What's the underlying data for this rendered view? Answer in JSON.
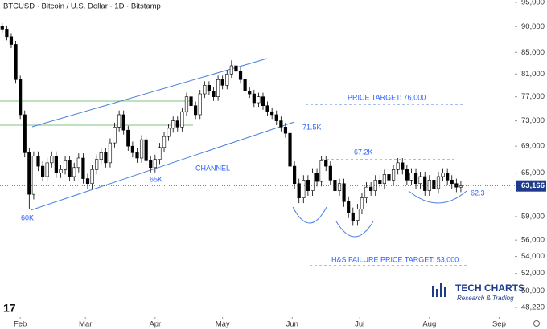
{
  "chart_data": {
    "type": "candlestick",
    "title": "BTCUSD · Bitcoin / U.S. Dollar · 1D · Bitstamp",
    "log": true,
    "x": [
      24,
      26,
      28,
      30,
      32,
      34,
      36,
      38,
      40,
      42,
      44,
      46,
      48,
      50,
      52,
      54,
      56,
      58,
      60,
      62,
      64,
      66,
      68,
      70,
      72,
      74,
      76,
      78,
      80,
      82,
      84,
      86,
      88,
      90,
      92,
      94,
      96,
      98,
      100,
      102,
      104,
      106,
      108,
      110,
      112,
      114,
      116,
      118,
      120,
      122,
      124,
      126,
      128,
      130,
      132,
      134,
      136,
      138,
      140,
      142,
      144,
      146,
      148,
      150,
      152,
      154,
      156,
      158,
      160,
      162,
      164,
      166,
      168,
      170,
      172,
      174,
      176,
      178,
      180,
      182,
      184,
      186,
      188,
      190,
      192,
      194,
      196,
      198,
      200,
      202,
      204,
      206,
      208,
      210,
      212,
      214,
      216,
      218,
      220,
      222,
      224,
      226,
      228
    ],
    "open": [
      90000,
      89500,
      88000,
      86500,
      80000,
      74000,
      68000,
      62000,
      67500,
      66000,
      64500,
      66500,
      67500,
      65000,
      65500,
      66800,
      64500,
      65800,
      67200,
      64200,
      63500,
      65500,
      67000,
      68000,
      66500,
      69500,
      72000,
      74000,
      71500,
      69000,
      68000,
      67200,
      70000,
      66800,
      65800,
      67000,
      68800,
      70500,
      71800,
      73000,
      72000,
      74500,
      77000,
      75500,
      74000,
      77500,
      79000,
      78000,
      77000,
      80000,
      79000,
      81000,
      82500,
      81500,
      80000,
      78000,
      77500,
      76000,
      77000,
      75500,
      74500,
      74000,
      73000,
      72000,
      71000,
      66000,
      63500,
      61500,
      64000,
      62500,
      65000,
      63800,
      66800,
      66000,
      64000,
      62500,
      63500,
      61000,
      59500,
      58500,
      60000,
      61500,
      63000,
      62500,
      64000,
      63500,
      64800,
      64000,
      65500,
      66500,
      65500,
      64000,
      65000,
      63500,
      64500,
      62500,
      64000,
      62800,
      64500,
      65000,
      64000,
      63500,
      63000
    ],
    "high": [
      90700,
      90200,
      88700,
      87200,
      80700,
      74700,
      68700,
      68200,
      68200,
      66700,
      67200,
      68200,
      68200,
      66200,
      67500,
      67500,
      66500,
      67900,
      67900,
      64900,
      66200,
      67700,
      68700,
      68700,
      70200,
      72700,
      74700,
      74700,
      72200,
      69700,
      68700,
      70700,
      70700,
      67500,
      67700,
      69500,
      71200,
      72500,
      73700,
      73700,
      75200,
      77700,
      77700,
      76200,
      78200,
      79700,
      79700,
      78700,
      80700,
      80700,
      81700,
      83500,
      83200,
      82200,
      80700,
      78700,
      78200,
      77700,
      77700,
      76200,
      75200,
      74700,
      73700,
      72700,
      71700,
      66700,
      64200,
      64700,
      64700,
      65700,
      65700,
      67500,
      67500,
      66700,
      64700,
      64200,
      64200,
      61700,
      60200,
      60700,
      62200,
      63700,
      63700,
      64700,
      64700,
      65500,
      65500,
      66200,
      67200,
      67200,
      66200,
      65700,
      65700,
      65200,
      65200,
      64700,
      64700,
      65200,
      65700,
      65700,
      64700,
      64200,
      63866
    ],
    "low": [
      88800,
      87300,
      85800,
      79300,
      73300,
      67300,
      60000,
      61300,
      65300,
      63800,
      63800,
      65800,
      64300,
      64300,
      64800,
      63800,
      63800,
      65100,
      63500,
      62800,
      62800,
      64800,
      66300,
      65800,
      65800,
      68800,
      71300,
      70800,
      68300,
      67300,
      66500,
      66500,
      66100,
      65100,
      65100,
      66300,
      68100,
      69800,
      71100,
      71300,
      71300,
      73800,
      74800,
      73300,
      73300,
      76800,
      77300,
      76300,
      76300,
      78300,
      78300,
      80300,
      80800,
      79300,
      77300,
      76800,
      75300,
      75300,
      74800,
      73800,
      73300,
      72300,
      71300,
      70300,
      65300,
      62800,
      60800,
      60800,
      61800,
      61800,
      63100,
      63100,
      65300,
      63300,
      61800,
      61800,
      60300,
      58800,
      57800,
      57800,
      59300,
      60800,
      61800,
      61800,
      62800,
      62800,
      63300,
      63300,
      64800,
      64800,
      63300,
      63300,
      62800,
      62800,
      61800,
      61800,
      62100,
      62100,
      63800,
      63300,
      62800,
      62300,
      62300
    ],
    "close": [
      89500,
      88000,
      86500,
      80000,
      74000,
      68000,
      62000,
      67500,
      66000,
      64500,
      66500,
      67500,
      65000,
      65500,
      66800,
      64500,
      65800,
      67200,
      64200,
      63500,
      65500,
      67000,
      68000,
      66500,
      69500,
      72000,
      74000,
      71500,
      69000,
      68000,
      67200,
      70000,
      66800,
      65800,
      67000,
      68800,
      70500,
      71800,
      73000,
      72000,
      74500,
      77000,
      75500,
      74000,
      77500,
      79000,
      78000,
      77000,
      80000,
      79000,
      81000,
      82500,
      81500,
      80000,
      78000,
      77500,
      76000,
      77000,
      75500,
      74500,
      74000,
      73000,
      72000,
      71000,
      66000,
      63500,
      61500,
      64000,
      62500,
      65000,
      63800,
      66800,
      66000,
      64000,
      62500,
      63500,
      61000,
      59500,
      58500,
      60000,
      61500,
      63000,
      62500,
      64000,
      63500,
      64800,
      64000,
      65500,
      66500,
      65500,
      64000,
      65000,
      63500,
      64500,
      62500,
      64000,
      62800,
      64500,
      65000,
      64000,
      63500,
      63000,
      63166
    ],
    "up_color": "#ffffff",
    "down_color": "#000000",
    "last_price": {
      "value": 63166,
      "label": "63,166"
    },
    "xlim": [
      23,
      252
    ],
    "xticks": [
      {
        "value": 32,
        "label": "Feb"
      },
      {
        "value": 61,
        "label": "Mar"
      },
      {
        "value": 92,
        "label": "Apr"
      },
      {
        "value": 122,
        "label": "May"
      },
      {
        "value": 153,
        "label": "Jun"
      },
      {
        "value": 183,
        "label": "Jul"
      },
      {
        "value": 214,
        "label": "Aug"
      },
      {
        "value": 245,
        "label": "Sep"
      }
    ],
    "ylim": [
      47200,
      95500
    ],
    "yticks": [
      {
        "value": 95000,
        "label": "95,000"
      },
      {
        "value": 90000,
        "label": "90,000"
      },
      {
        "value": 85000,
        "label": "85,000"
      },
      {
        "value": 81000,
        "label": "81,000"
      },
      {
        "value": 77000,
        "label": "77,000"
      },
      {
        "value": 73000,
        "label": "73,000"
      },
      {
        "value": 69000,
        "label": "69,000"
      },
      {
        "value": 65000,
        "label": "65,000"
      },
      {
        "value": 59000,
        "label": "59,000"
      },
      {
        "value": 56000,
        "label": "56,000"
      },
      {
        "value": 54000,
        "label": "54,000"
      },
      {
        "value": 52000,
        "label": "52,000"
      },
      {
        "value": 50000,
        "label": "50,000"
      },
      {
        "value": 48220,
        "label": "48,220"
      }
    ],
    "annotations": [
      "PRICE TARGET: 76,000",
      "71.5K",
      "67.2K",
      "65K",
      "CHANNEL",
      "60K",
      "62.3",
      "H&S FAILURE PRICE TARGET: 53,000"
    ],
    "logo": {
      "name": "TECH CHARTS",
      "tagline": "Research & Trading"
    }
  }
}
